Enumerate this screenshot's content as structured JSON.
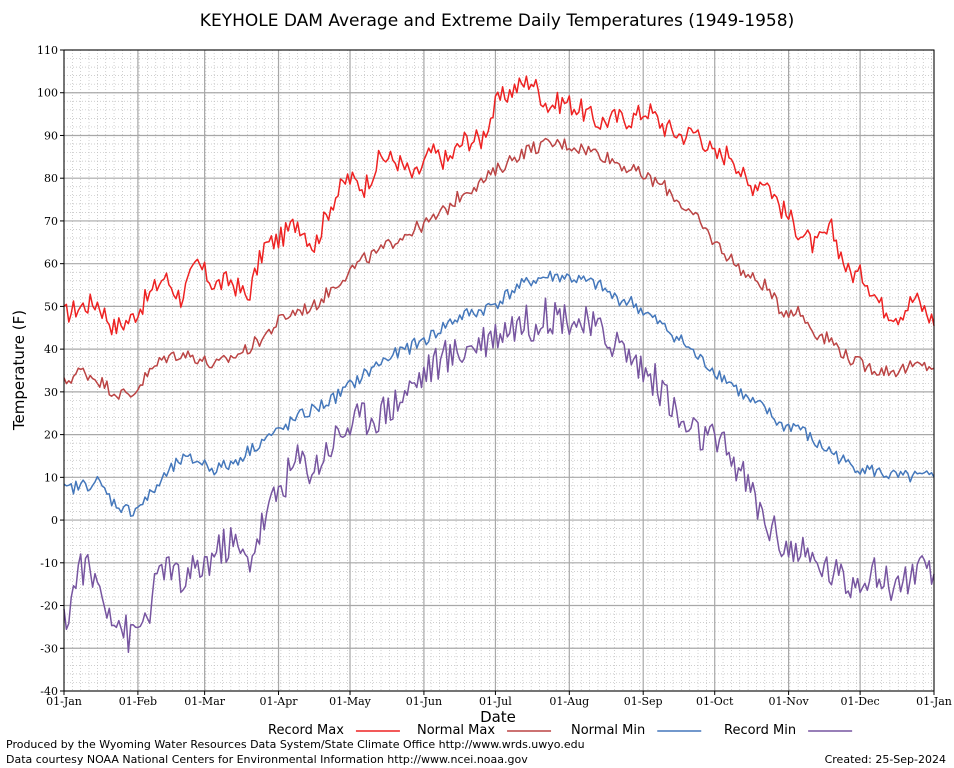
{
  "chart_data": {
    "type": "line",
    "title": "KEYHOLE DAM Average and Extreme Daily Temperatures (1949-1958)",
    "xlabel": "Date",
    "ylabel": "Temperature (F)",
    "ylim": [
      -40,
      110
    ],
    "xlim": [
      1,
      366
    ],
    "yticks": [
      -40,
      -30,
      -20,
      -10,
      0,
      10,
      20,
      30,
      40,
      50,
      60,
      70,
      80,
      90,
      100,
      110
    ],
    "xticks": [
      {
        "day": 1,
        "label": "01-Jan"
      },
      {
        "day": 32,
        "label": "01-Feb"
      },
      {
        "day": 60,
        "label": "01-Mar"
      },
      {
        "day": 91,
        "label": "01-Apr"
      },
      {
        "day": 121,
        "label": "01-May"
      },
      {
        "day": 152,
        "label": "01-Jun"
      },
      {
        "day": 182,
        "label": "01-Jul"
      },
      {
        "day": 213,
        "label": "01-Aug"
      },
      {
        "day": 244,
        "label": "01-Sep"
      },
      {
        "day": 274,
        "label": "01-Oct"
      },
      {
        "day": 305,
        "label": "01-Nov"
      },
      {
        "day": 335,
        "label": "01-Dec"
      },
      {
        "day": 366,
        "label": "01-Jan"
      }
    ],
    "grid": true,
    "legend_position": "bottom",
    "series": [
      {
        "name": "Record Max",
        "color": "#ee2222",
        "x": [
          1,
          8,
          15,
          22,
          29,
          36,
          43,
          50,
          57,
          64,
          71,
          78,
          85,
          92,
          99,
          106,
          113,
          120,
          127,
          134,
          141,
          148,
          155,
          162,
          169,
          176,
          183,
          190,
          197,
          204,
          211,
          218,
          225,
          232,
          239,
          246,
          253,
          260,
          267,
          274,
          281,
          288,
          295,
          302,
          309,
          316,
          323,
          330,
          337,
          344,
          351,
          358,
          365
        ],
        "values": [
          48,
          50,
          51,
          45,
          47,
          52,
          57,
          52,
          60,
          55,
          56,
          52,
          64,
          66,
          70,
          64,
          74,
          80,
          78,
          85,
          84,
          80,
          86,
          84,
          89,
          89,
          98,
          101,
          103,
          97,
          98,
          96,
          93,
          94,
          94,
          96,
          92,
          90,
          91,
          85,
          86,
          78,
          80,
          73,
          68,
          64,
          68,
          58,
          57,
          50,
          48,
          52,
          47
        ]
      },
      {
        "name": "Normal Max",
        "color": "#bb4444",
        "x": [
          1,
          8,
          15,
          22,
          29,
          36,
          43,
          50,
          57,
          64,
          71,
          78,
          85,
          92,
          99,
          106,
          113,
          120,
          127,
          134,
          141,
          148,
          155,
          162,
          169,
          176,
          183,
          190,
          197,
          204,
          211,
          218,
          225,
          232,
          239,
          246,
          253,
          260,
          267,
          274,
          281,
          288,
          295,
          302,
          309,
          316,
          323,
          330,
          337,
          344,
          351,
          358,
          365
        ],
        "values": [
          32,
          35,
          33,
          30,
          29,
          34,
          38,
          39,
          38,
          36,
          38,
          40,
          43,
          47,
          49,
          50,
          54,
          58,
          61,
          63,
          66,
          68,
          70,
          73,
          77,
          79,
          82,
          85,
          87,
          88,
          88,
          87,
          86,
          84,
          82,
          80,
          78,
          74,
          70,
          65,
          61,
          57,
          55,
          49,
          49,
          44,
          42,
          38,
          36,
          35,
          35,
          36,
          36
        ]
      },
      {
        "name": "Normal Min",
        "color": "#4477bb",
        "x": [
          1,
          8,
          15,
          22,
          29,
          36,
          43,
          50,
          57,
          64,
          71,
          78,
          85,
          92,
          99,
          106,
          113,
          120,
          127,
          134,
          141,
          148,
          155,
          162,
          169,
          176,
          183,
          190,
          197,
          204,
          211,
          218,
          225,
          232,
          239,
          246,
          253,
          260,
          267,
          274,
          281,
          288,
          295,
          302,
          309,
          316,
          323,
          330,
          337,
          344,
          351,
          358,
          365
        ],
        "values": [
          7,
          8,
          9,
          4,
          2,
          5,
          10,
          14,
          14,
          12,
          13,
          16,
          19,
          21,
          24,
          26,
          28,
          31,
          34,
          37,
          39,
          41,
          43,
          46,
          48,
          49,
          51,
          54,
          56,
          57,
          57,
          56,
          55,
          52,
          51,
          48,
          45,
          42,
          38,
          35,
          32,
          28,
          26,
          22,
          22,
          18,
          16,
          13,
          12,
          11,
          10,
          10,
          10
        ]
      },
      {
        "name": "Record Min",
        "color": "#7755a0",
        "x": [
          1,
          8,
          15,
          22,
          29,
          36,
          43,
          50,
          57,
          64,
          71,
          78,
          85,
          92,
          99,
          106,
          113,
          120,
          127,
          134,
          141,
          148,
          155,
          162,
          169,
          176,
          183,
          190,
          197,
          204,
          211,
          218,
          225,
          232,
          239,
          246,
          253,
          260,
          267,
          274,
          281,
          288,
          295,
          302,
          309,
          316,
          323,
          330,
          337,
          344,
          351,
          358,
          365
        ],
        "values": [
          -25,
          -10,
          -15,
          -22,
          -28,
          -22,
          -10,
          -15,
          -12,
          -8,
          -5,
          -10,
          0,
          8,
          14,
          12,
          18,
          22,
          24,
          25,
          28,
          32,
          36,
          38,
          40,
          42,
          44,
          46,
          46,
          48,
          48,
          46,
          44,
          42,
          38,
          34,
          30,
          22,
          20,
          18,
          15,
          8,
          0,
          -5,
          -8,
          -10,
          -12,
          -15,
          -12,
          -14,
          -15,
          -12,
          -14
        ]
      }
    ]
  },
  "legend": {
    "items": [
      {
        "label": "Record Max",
        "color": "#ee2222"
      },
      {
        "label": "Normal Max",
        "color": "#bb4444"
      },
      {
        "label": "Normal Min",
        "color": "#4477bb"
      },
      {
        "label": "Record Min",
        "color": "#7755a0"
      }
    ]
  },
  "footer": {
    "line1": "Produced by the Wyoming Water Resources Data System/State Climate Office http://www.wrds.uwyo.edu",
    "line2": "Data courtesy NOAA National Centers for Environmental Information http://www.ncei.noaa.gov",
    "created": "Created:  25-Sep-2024"
  }
}
